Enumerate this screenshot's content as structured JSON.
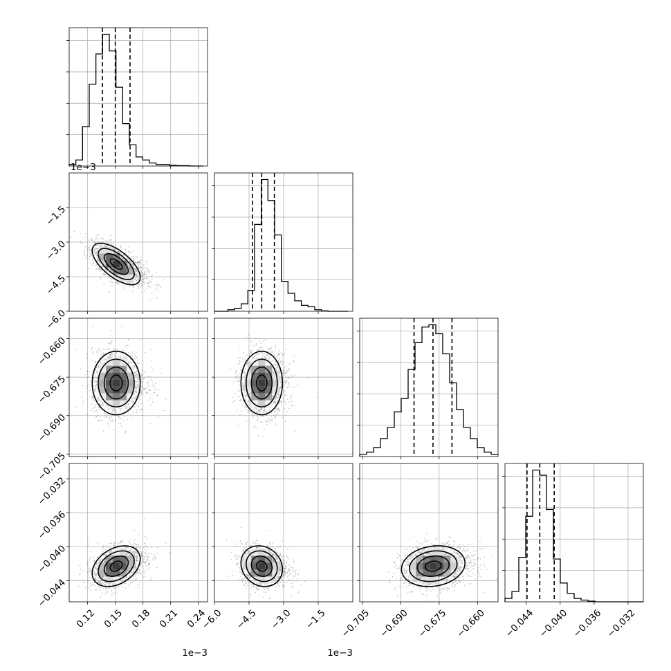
{
  "chart_data": {
    "type": "corner",
    "parameters": [
      {
        "offset_label": "1e−3",
        "lim": [
          0.1,
          0.25
        ],
        "ticks": [
          {
            "value": 0.12,
            "label": "0.12"
          },
          {
            "value": 0.15,
            "label": "0.15"
          },
          {
            "value": 0.18,
            "label": "0.18"
          },
          {
            "value": 0.21,
            "label": "0.21"
          },
          {
            "value": 0.24,
            "label": "0.24"
          }
        ],
        "quantiles": [
          0.136,
          0.15,
          0.166
        ],
        "hist": {
          "edges_start": 0.1,
          "bin_width": 0.00725,
          "counts": [
            1,
            4,
            26,
            54,
            74,
            87,
            76,
            52,
            28,
            14,
            6,
            4,
            2,
            1,
            1,
            0.5,
            0.3,
            0.2,
            0,
            0
          ]
        },
        "center": 0.151,
        "sigma": 0.013
      },
      {
        "offset_label": "1e−3",
        "lim": [
          -6.0,
          0.0
        ],
        "ticks": [
          {
            "value": -6.0,
            "label": "−6.0"
          },
          {
            "value": -4.5,
            "label": "−4.5"
          },
          {
            "value": -3.0,
            "label": "−3.0"
          },
          {
            "value": -1.5,
            "label": "−1.5"
          }
        ],
        "quantiles": [
          -4.35,
          -3.95,
          -3.4
        ],
        "hist": {
          "edges_start": -6.0,
          "bin_width": 0.29,
          "counts": [
            0,
            0,
            1,
            2,
            5,
            14,
            58,
            88,
            74,
            51,
            20,
            12,
            7,
            4,
            3,
            1,
            0.3,
            0,
            0,
            0
          ]
        },
        "center": -3.95,
        "sigma": 0.45
      },
      {
        "offset_label": "",
        "lim": [
          -0.706,
          -0.652
        ],
        "ticks": [
          {
            "value": -0.705,
            "label": "−0.705"
          },
          {
            "value": -0.69,
            "label": "−0.690"
          },
          {
            "value": -0.675,
            "label": "−0.675"
          },
          {
            "value": -0.66,
            "label": "−0.660"
          }
        ],
        "quantiles": [
          -0.6848,
          -0.6774,
          -0.67
        ],
        "hist": {
          "edges_start": -0.706,
          "bin_width": 0.0027,
          "counts": [
            1,
            2,
            4,
            8,
            13,
            20,
            26,
            39,
            51,
            58,
            59,
            55,
            46,
            33,
            21,
            13,
            8,
            4,
            2,
            1
          ]
        },
        "center": -0.6773,
        "sigma": 0.0062
      },
      {
        "offset_label": "",
        "lim": [
          -0.0465,
          -0.0302
        ],
        "ticks": [
          {
            "value": -0.044,
            "label": "−0.044"
          },
          {
            "value": -0.04,
            "label": "−0.040"
          },
          {
            "value": -0.036,
            "label": "−0.036"
          },
          {
            "value": -0.032,
            "label": "−0.032"
          }
        ],
        "quantiles": [
          -0.0439,
          -0.0424,
          -0.0407
        ],
        "hist": {
          "edges_start": -0.0465,
          "bin_width": 0.000815,
          "counts": [
            2,
            6,
            26,
            50,
            77,
            74,
            54,
            25,
            11,
            5,
            2,
            1,
            0.4,
            0,
            0,
            0,
            0,
            0,
            0,
            0
          ]
        },
        "center": -0.0423,
        "sigma": 0.0012
      }
    ],
    "pairs": [
      {
        "row": 1,
        "col": 0,
        "rho": -0.65
      },
      {
        "row": 2,
        "col": 0,
        "rho": 0.0
      },
      {
        "row": 2,
        "col": 1,
        "rho": 0.0
      },
      {
        "row": 3,
        "col": 0,
        "rho": 0.35
      },
      {
        "row": 3,
        "col": 1,
        "rho": -0.15
      },
      {
        "row": 3,
        "col": 2,
        "rho": 0.15
      }
    ],
    "contour_levels_sigma": [
      0.5,
      1.0,
      1.5,
      2.0
    ],
    "grid": true,
    "legend": "none"
  }
}
